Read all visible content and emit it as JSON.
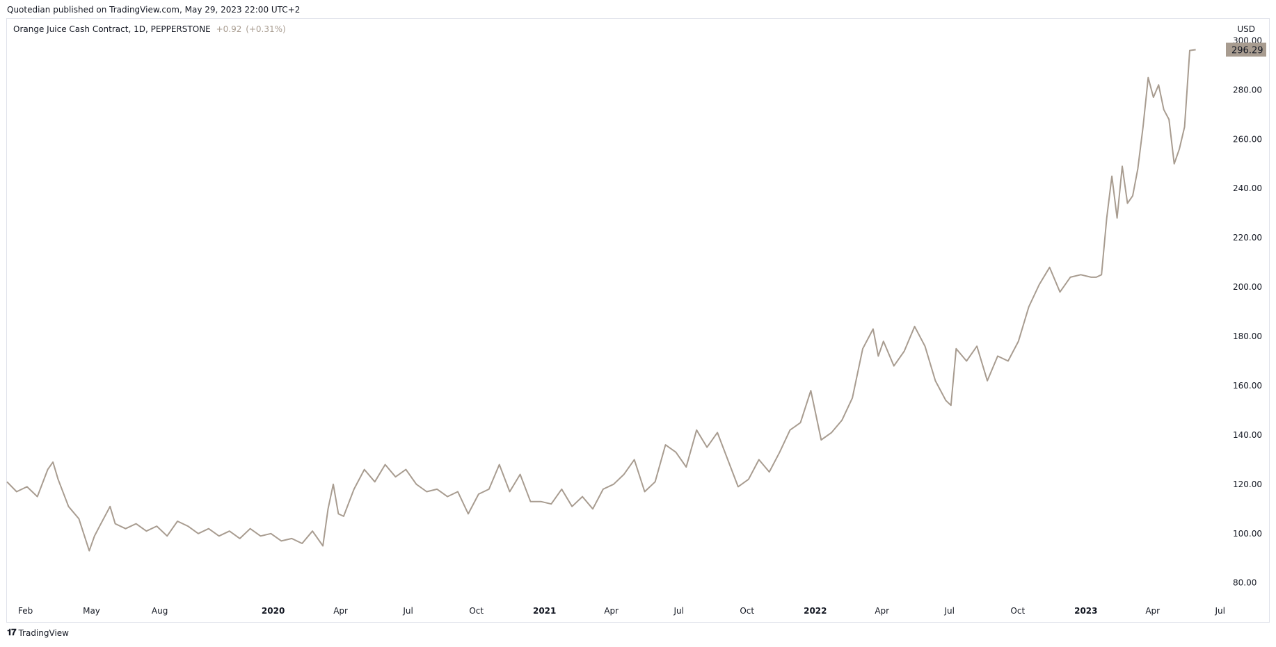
{
  "header": {
    "text": "Quotedian published on TradingView.com, May 29, 2023 22:00 UTC+2"
  },
  "legend": {
    "title": "Orange Juice Cash Contract, 1D, PEPPERSTONE",
    "change": "+0.92",
    "change_pct": "(+0.31%)"
  },
  "axis": {
    "currency": "USD"
  },
  "footer": {
    "logo_glyph": "𝟏𝟕",
    "brand": "TradingView"
  },
  "colors": {
    "line": "#a89c90",
    "price_label_bg": "#a89c90",
    "price_label_text": "#131722",
    "axis_text": "#131722",
    "border": "#e0e3eb"
  },
  "chart_data": {
    "type": "line",
    "title": "Orange Juice Cash Contract, 1D, PEPPERSTONE",
    "ylim": [
      74,
      308
    ],
    "grid": false,
    "y_ticks": [
      "80.00",
      "100.00",
      "120.00",
      "140.00",
      "160.00",
      "180.00",
      "200.00",
      "220.00",
      "240.00",
      "260.00",
      "280.00",
      "300.00"
    ],
    "last_price": "296.29",
    "x_ticks": [
      {
        "label": "Feb",
        "bold": false,
        "date": "2019-02-01"
      },
      {
        "label": "May",
        "bold": false,
        "date": "2019-05-01"
      },
      {
        "label": "Aug",
        "bold": false,
        "date": "2019-08-01"
      },
      {
        "label": "2020",
        "bold": true,
        "date": "2020-01-01"
      },
      {
        "label": "Apr",
        "bold": false,
        "date": "2020-04-01"
      },
      {
        "label": "Jul",
        "bold": false,
        "date": "2020-07-01"
      },
      {
        "label": "Oct",
        "bold": false,
        "date": "2020-10-01"
      },
      {
        "label": "2021",
        "bold": true,
        "date": "2021-01-01"
      },
      {
        "label": "Apr",
        "bold": false,
        "date": "2021-04-01"
      },
      {
        "label": "Jul",
        "bold": false,
        "date": "2021-07-01"
      },
      {
        "label": "Oct",
        "bold": false,
        "date": "2021-10-01"
      },
      {
        "label": "2022",
        "bold": true,
        "date": "2022-01-01"
      },
      {
        "label": "Apr",
        "bold": false,
        "date": "2022-04-01"
      },
      {
        "label": "Jul",
        "bold": false,
        "date": "2022-07-01"
      },
      {
        "label": "Oct",
        "bold": false,
        "date": "2022-10-01"
      },
      {
        "label": "2023",
        "bold": true,
        "date": "2023-01-01"
      },
      {
        "label": "Apr",
        "bold": false,
        "date": "2023-04-01"
      },
      {
        "label": "Jul",
        "bold": false,
        "date": "2023-07-01"
      }
    ],
    "series": [
      {
        "x": [
          "2019-01-07",
          "2019-01-20",
          "2019-02-03",
          "2019-02-17",
          "2019-03-03",
          "2019-03-10",
          "2019-03-17",
          "2019-03-31",
          "2019-04-14",
          "2019-04-28",
          "2019-05-05",
          "2019-05-12",
          "2019-05-26",
          "2019-06-02",
          "2019-06-16",
          "2019-06-30",
          "2019-07-14",
          "2019-07-28",
          "2019-08-11",
          "2019-08-25",
          "2019-09-08",
          "2019-09-22",
          "2019-10-06",
          "2019-10-20",
          "2019-11-03",
          "2019-11-17",
          "2019-12-01",
          "2019-12-15",
          "2019-12-29",
          "2020-01-12",
          "2020-01-26",
          "2020-02-09",
          "2020-02-23",
          "2020-03-08",
          "2020-03-15",
          "2020-03-22",
          "2020-03-29",
          "2020-04-05",
          "2020-04-19",
          "2020-05-03",
          "2020-05-17",
          "2020-05-31",
          "2020-06-14",
          "2020-06-28",
          "2020-07-12",
          "2020-07-26",
          "2020-08-09",
          "2020-08-23",
          "2020-09-06",
          "2020-09-20",
          "2020-10-04",
          "2020-10-18",
          "2020-11-01",
          "2020-11-15",
          "2020-11-29",
          "2020-12-13",
          "2020-12-27",
          "2021-01-10",
          "2021-01-24",
          "2021-02-07",
          "2021-02-21",
          "2021-03-07",
          "2021-03-21",
          "2021-04-04",
          "2021-04-18",
          "2021-05-02",
          "2021-05-16",
          "2021-05-30",
          "2021-06-13",
          "2021-06-27",
          "2021-07-11",
          "2021-07-25",
          "2021-08-08",
          "2021-08-22",
          "2021-09-05",
          "2021-09-19",
          "2021-10-03",
          "2021-10-17",
          "2021-10-31",
          "2021-11-14",
          "2021-11-28",
          "2021-12-12",
          "2021-12-26",
          "2022-01-09",
          "2022-01-23",
          "2022-02-06",
          "2022-02-20",
          "2022-03-06",
          "2022-03-20",
          "2022-03-27",
          "2022-04-03",
          "2022-04-17",
          "2022-05-01",
          "2022-05-15",
          "2022-05-29",
          "2022-06-12",
          "2022-06-26",
          "2022-07-03",
          "2022-07-10",
          "2022-07-24",
          "2022-08-07",
          "2022-08-21",
          "2022-09-04",
          "2022-09-18",
          "2022-10-02",
          "2022-10-16",
          "2022-10-30",
          "2022-11-13",
          "2022-11-27",
          "2022-12-11",
          "2022-12-25",
          "2023-01-08",
          "2023-01-15",
          "2023-01-22",
          "2023-01-29",
          "2023-02-05",
          "2023-02-12",
          "2023-02-19",
          "2023-02-26",
          "2023-03-05",
          "2023-03-12",
          "2023-03-19",
          "2023-03-26",
          "2023-04-02",
          "2023-04-09",
          "2023-04-16",
          "2023-04-23",
          "2023-04-30",
          "2023-05-07",
          "2023-05-14",
          "2023-05-21",
          "2023-05-29"
        ],
        "values": [
          121,
          117,
          119,
          115,
          126,
          129,
          122,
          111,
          106,
          93,
          99,
          103,
          111,
          104,
          102,
          104,
          101,
          103,
          99,
          105,
          103,
          100,
          102,
          99,
          101,
          98,
          102,
          99,
          100,
          97,
          98,
          96,
          101,
          95,
          110,
          120,
          108,
          107,
          118,
          126,
          121,
          128,
          123,
          126,
          120,
          117,
          118,
          115,
          117,
          108,
          116,
          118,
          128,
          117,
          124,
          113,
          113,
          112,
          118,
          111,
          115,
          110,
          118,
          120,
          124,
          130,
          117,
          121,
          136,
          133,
          127,
          142,
          135,
          141,
          130,
          119,
          122,
          130,
          125,
          133,
          142,
          145,
          158,
          138,
          141,
          146,
          155,
          175,
          183,
          172,
          178,
          168,
          174,
          184,
          176,
          162,
          154,
          152,
          175,
          170,
          176,
          162,
          172,
          170,
          178,
          192,
          201,
          208,
          198,
          204,
          205,
          204,
          204,
          205,
          228,
          245,
          228,
          249,
          234,
          237,
          248,
          265,
          285,
          277,
          282,
          272,
          268,
          250,
          256,
          265,
          296,
          296.29
        ]
      }
    ]
  }
}
